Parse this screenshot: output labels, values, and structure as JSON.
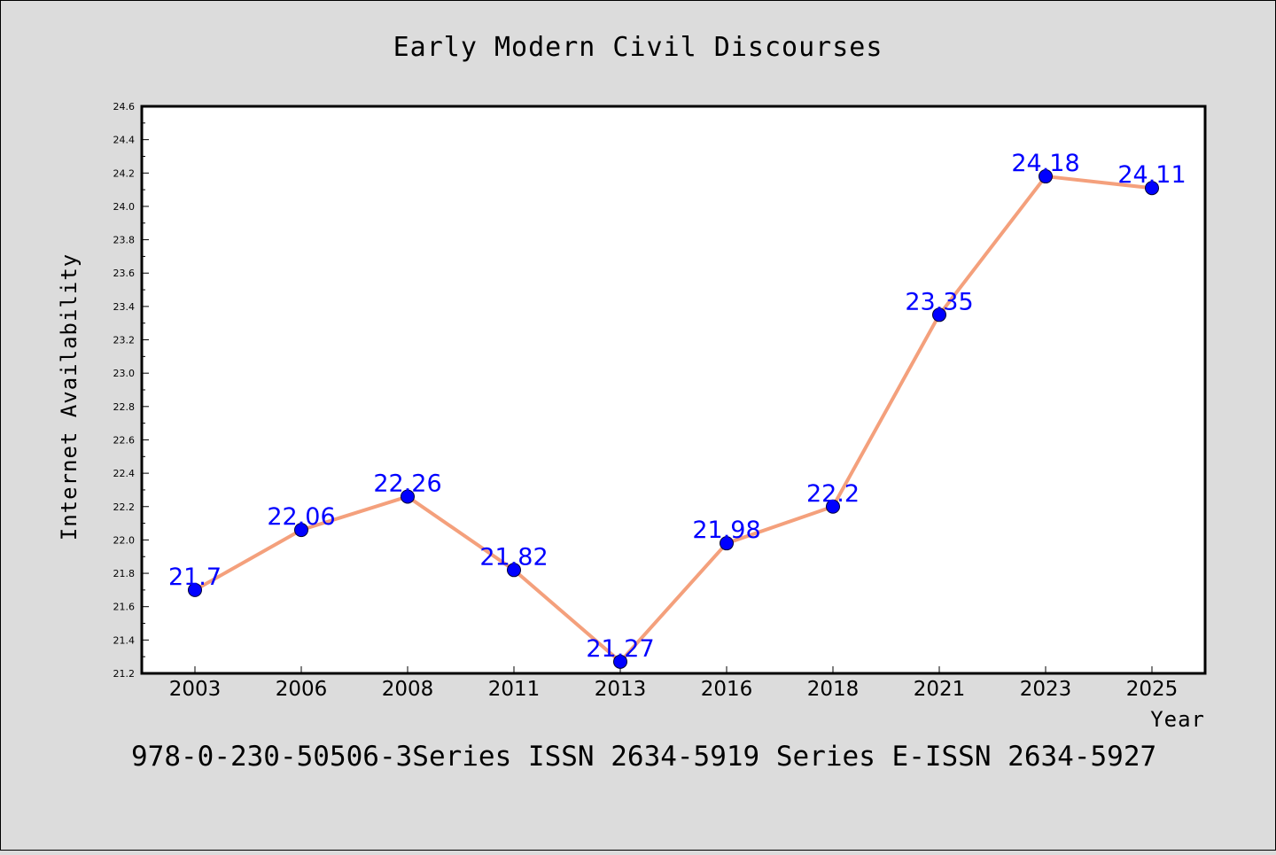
{
  "chart_data": {
    "type": "line",
    "title": "Early Modern Civil Discourses",
    "xlabel": "Year",
    "ylabel": "Internet Availability",
    "categories": [
      "2003",
      "2006",
      "2008",
      "2011",
      "2013",
      "2016",
      "2018",
      "2021",
      "2023",
      "2025"
    ],
    "series": [
      {
        "values": [
          21.7,
          22.06,
          22.26,
          21.82,
          21.27,
          21.98,
          22.2,
          23.35,
          24.18,
          24.11
        ],
        "data_labels": [
          "21.7",
          "22.06",
          "22.26",
          "21.82",
          "21.27",
          "21.98",
          "22.2",
          "23.35",
          "24.18",
          "24.11"
        ]
      }
    ],
    "ylim": [
      21.2,
      24.6
    ],
    "yticks": [
      "21.2",
      "21.4",
      "21.6",
      "21.8",
      "22.0",
      "22.2",
      "22.4",
      "22.6",
      "22.8",
      "23.0",
      "23.2",
      "23.4",
      "23.6",
      "23.8",
      "24.0",
      "24.2",
      "24.4",
      "24.6"
    ],
    "grid": false,
    "legend": "none",
    "colors": {
      "background": "#dcdcdc",
      "plot_area": "#ffffff",
      "line": "#f4a07c",
      "marker": "#0000ff",
      "data_label": "#0000ff"
    }
  },
  "footer_text": "978-0-230-50506-3Series ISSN 2634-5919 Series E-ISSN 2634-5927"
}
